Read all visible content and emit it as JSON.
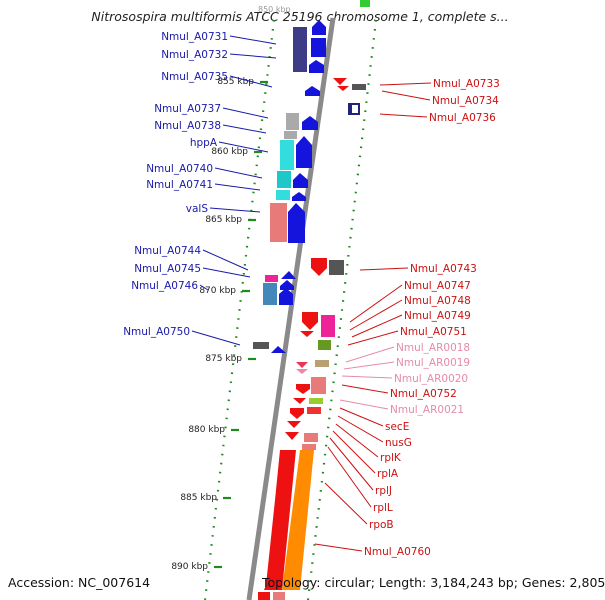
{
  "title": "Nitrosospira multiformis ATCC 25196 chromosome 1, complete s...",
  "top_tick_label": "850 kbp",
  "accession": "Accession: NC_007614",
  "topology": "Topology: circular; Length: 3,184,243 bp; Genes: 2,805",
  "colors": {
    "left_label": "#1a1aaa",
    "right_label": "#cc1111",
    "rna_label": "#e88aa8",
    "backbone": "#8a8a8a",
    "ticks": "#1f8a1f"
  },
  "ticks": [
    {
      "label": "855 kbp"
    },
    {
      "label": "860 kbp"
    },
    {
      "label": "865 kbp"
    },
    {
      "label": "870 kbp"
    },
    {
      "label": "875 kbp"
    },
    {
      "label": "880 kbp"
    },
    {
      "label": "885 kbp"
    },
    {
      "label": "890 kbp"
    }
  ],
  "left_genes": [
    {
      "name": "Nmul_A0731"
    },
    {
      "name": "Nmul_A0732"
    },
    {
      "name": "Nmul_A0735"
    },
    {
      "name": "Nmul_A0737"
    },
    {
      "name": "Nmul_A0738"
    },
    {
      "name": "hppA"
    },
    {
      "name": "Nmul_A0740"
    },
    {
      "name": "Nmul_A0741"
    },
    {
      "name": "valS"
    },
    {
      "name": "Nmul_A0744"
    },
    {
      "name": "Nmul_A0745"
    },
    {
      "name": "Nmul_A0746"
    },
    {
      "name": "Nmul_A0750"
    }
  ],
  "right_genes": [
    {
      "name": "Nmul_A0733",
      "kind": "protein"
    },
    {
      "name": "Nmul_A0734",
      "kind": "protein"
    },
    {
      "name": "Nmul_A0736",
      "kind": "protein"
    },
    {
      "name": "Nmul_A0743",
      "kind": "protein"
    },
    {
      "name": "Nmul_A0747",
      "kind": "protein"
    },
    {
      "name": "Nmul_A0748",
      "kind": "protein"
    },
    {
      "name": "Nmul_A0749",
      "kind": "protein"
    },
    {
      "name": "Nmul_A0751",
      "kind": "protein"
    },
    {
      "name": "Nmul_AR0018",
      "kind": "rna"
    },
    {
      "name": "Nmul_AR0019",
      "kind": "rna"
    },
    {
      "name": "Nmul_AR0020",
      "kind": "rna"
    },
    {
      "name": "Nmul_A0752",
      "kind": "protein"
    },
    {
      "name": "Nmul_AR0021",
      "kind": "rna"
    },
    {
      "name": "secE",
      "kind": "protein"
    },
    {
      "name": "nusG",
      "kind": "protein"
    },
    {
      "name": "rplK",
      "kind": "protein"
    },
    {
      "name": "rplA",
      "kind": "protein"
    },
    {
      "name": "rplJ",
      "kind": "protein"
    },
    {
      "name": "rplL",
      "kind": "protein"
    },
    {
      "name": "rpoB",
      "kind": "protein"
    },
    {
      "name": "Nmul_A0760",
      "kind": "protein"
    }
  ]
}
